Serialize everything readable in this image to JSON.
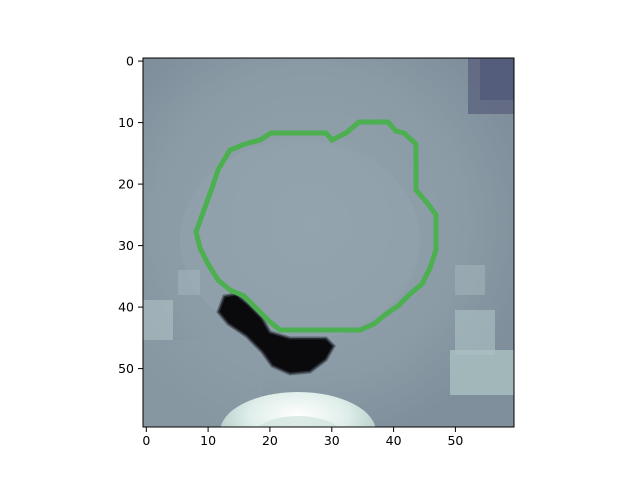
{
  "figure": {
    "x_ticks": [
      "0",
      "10",
      "20",
      "30",
      "40",
      "50"
    ],
    "y_ticks": [
      "0",
      "10",
      "20",
      "30",
      "40",
      "50"
    ],
    "colors": {
      "background_tissue": "#8a9aa6",
      "contour": "#4caf50",
      "air": "#000000",
      "bone": "#e6f0ee"
    }
  }
}
